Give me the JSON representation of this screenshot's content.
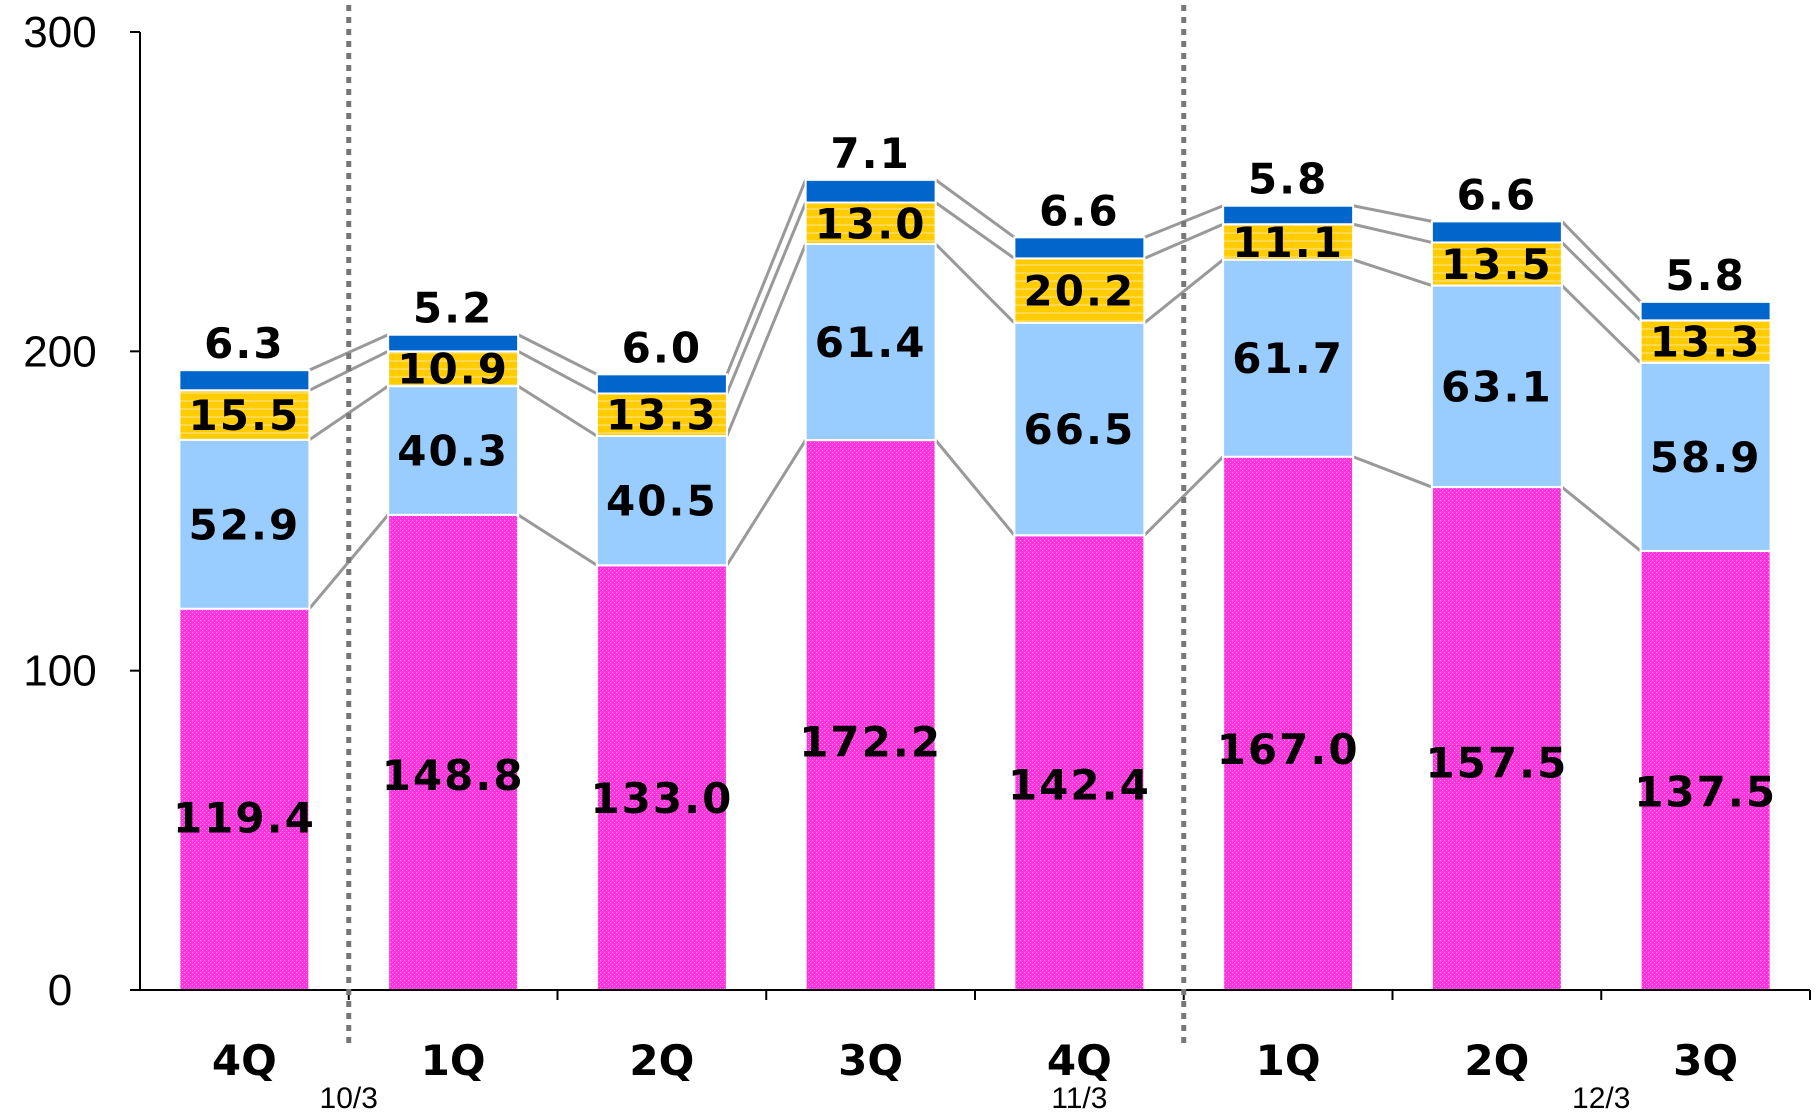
{
  "chart_data": {
    "type": "bar",
    "stacked": true,
    "title": "",
    "xlabel": "",
    "ylabel": "",
    "ylim": [
      0,
      300
    ],
    "yticks": [
      0,
      100,
      200,
      300
    ],
    "categories": [
      "4Q",
      "1Q",
      "2Q",
      "3Q",
      "4Q",
      "1Q",
      "2Q",
      "3Q"
    ],
    "period_labels": [
      {
        "text": "10/3",
        "after_index": 0
      },
      {
        "text": "11/3",
        "at_index": 4
      },
      {
        "text": "12/3",
        "after_index": 6
      }
    ],
    "dividers_after_index": [
      0,
      4
    ],
    "grid": false,
    "legend": "none",
    "series": [
      {
        "color": "#ff33dd",
        "values": [
          119.4,
          148.8,
          133.0,
          172.2,
          142.4,
          167.0,
          157.5,
          137.5
        ]
      },
      {
        "color": "#99ccff",
        "values": [
          52.9,
          40.3,
          40.5,
          61.4,
          66.5,
          61.7,
          63.1,
          58.9
        ]
      },
      {
        "color": "#ffcc00",
        "values": [
          15.5,
          10.9,
          13.3,
          13.0,
          20.2,
          11.1,
          13.5,
          13.3
        ]
      },
      {
        "color": "#0066cc",
        "values": [
          6.3,
          5.2,
          6.0,
          7.1,
          6.6,
          5.8,
          6.6,
          5.8
        ]
      }
    ]
  }
}
